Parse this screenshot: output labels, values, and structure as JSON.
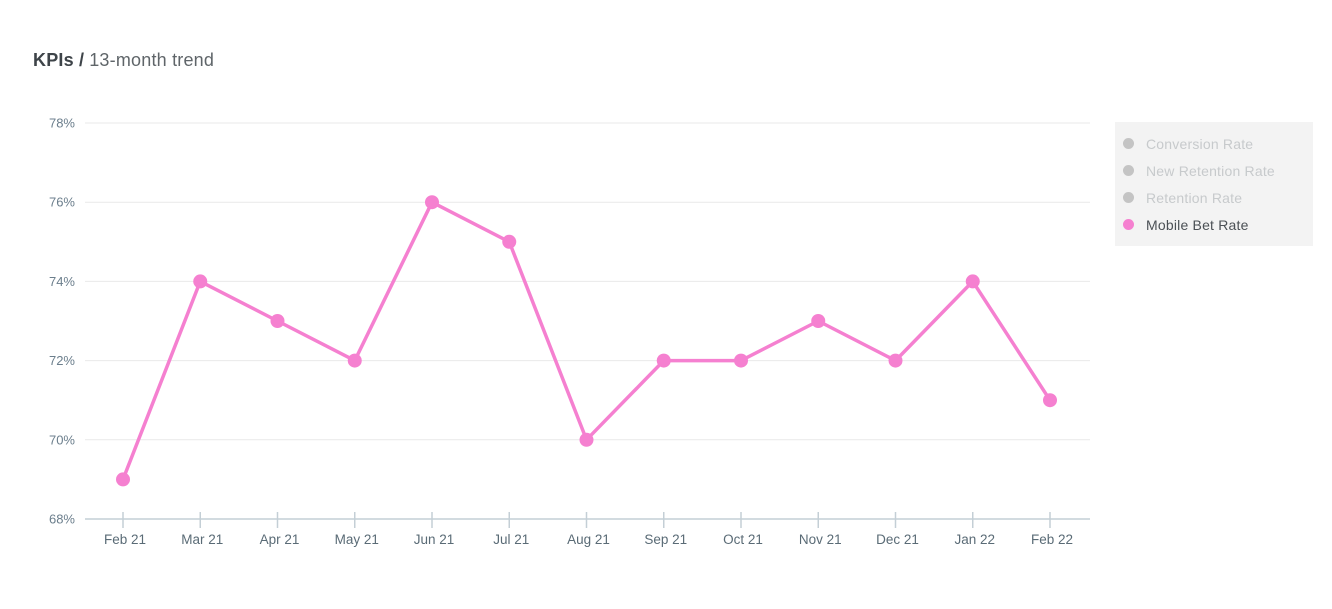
{
  "header": {
    "title_bold": "KPIs /",
    "title_secondary": "13-month trend"
  },
  "chart_data": {
    "type": "line",
    "title": "KPIs / 13-month trend",
    "categories": [
      "Feb 21",
      "Mar 21",
      "Apr 21",
      "May 21",
      "Jun 21",
      "Jul 21",
      "Aug 21",
      "Sep 21",
      "Oct 21",
      "Nov 21",
      "Dec 21",
      "Jan 22",
      "Feb 22"
    ],
    "series": [
      {
        "name": "Conversion Rate",
        "visible": false,
        "values": []
      },
      {
        "name": "New Retention Rate",
        "visible": false,
        "values": []
      },
      {
        "name": "Retention Rate",
        "visible": false,
        "values": []
      },
      {
        "name": "Mobile Bet Rate",
        "visible": true,
        "values": [
          69,
          74,
          73,
          72,
          76,
          75,
          70,
          72,
          72,
          73,
          72,
          74,
          71
        ]
      }
    ],
    "y_tick_labels": [
      "78%",
      "76%",
      "74%",
      "72%",
      "70%",
      "68%"
    ],
    "y_tick_values": [
      78,
      76,
      74,
      72,
      70,
      68
    ],
    "ylim": [
      68,
      78
    ],
    "grid": true,
    "legend_position": "right"
  },
  "legend": {
    "items": [
      {
        "label": "Conversion Rate",
        "enabled": false
      },
      {
        "label": "New Retention Rate",
        "enabled": false
      },
      {
        "label": "Retention Rate",
        "enabled": false
      },
      {
        "label": "Mobile Bet Rate",
        "enabled": true
      }
    ]
  },
  "colors": {
    "accent_pink": "#f580d0",
    "disabled_dot": "#c4c4c4",
    "disabled_text": "#c7cacc",
    "enabled_text": "#4b5055",
    "legend_bg": "#f3f3f3",
    "grid_line": "#e9e9e9",
    "axis_line": "#c4cfd6",
    "y_label": "#6b7e8c",
    "x_label": "#5a6b76"
  }
}
